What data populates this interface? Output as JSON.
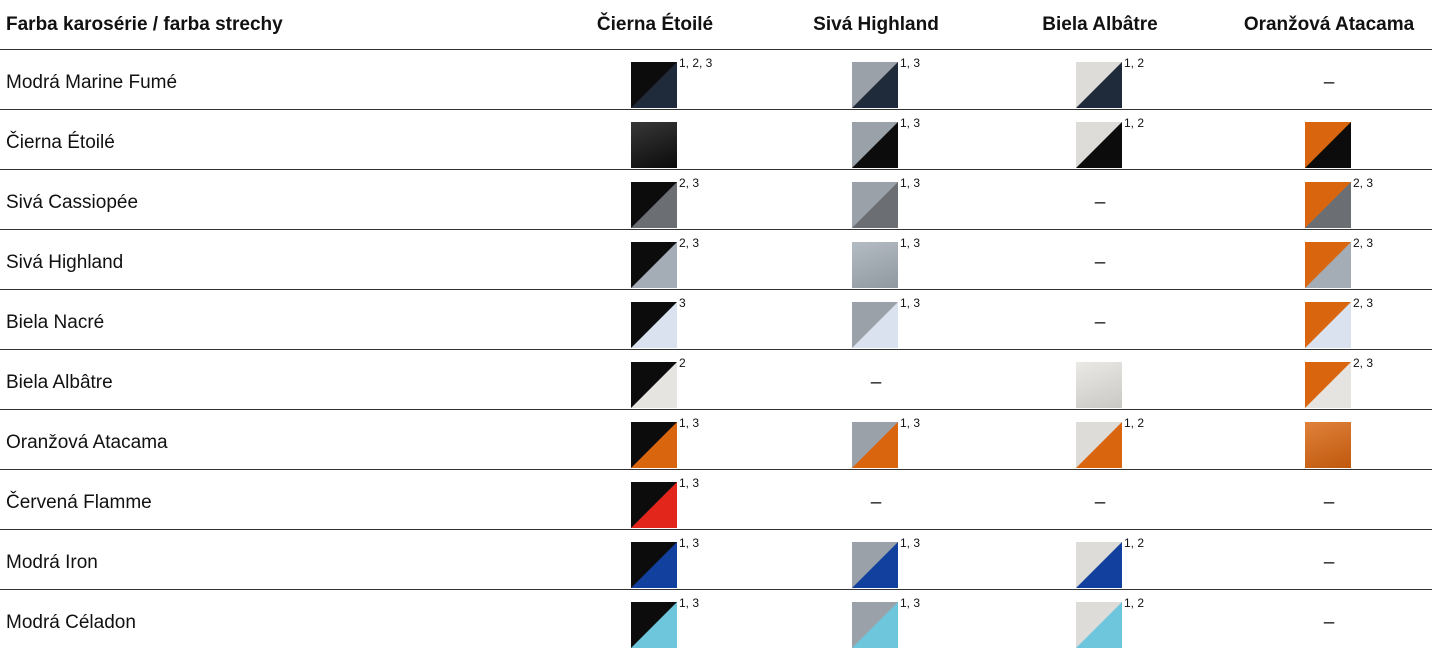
{
  "table": {
    "header": [
      "Farba karosérie / farba strechy",
      "Čierna Étoilé",
      "Sivá Highland",
      "Biela Albâtre",
      "Oranžová Atacama"
    ],
    "rows": [
      {
        "name": "Modrá Marine Fumé",
        "cells": [
          {
            "type": "split",
            "roof": "cierna",
            "body": "marine",
            "note": "1, 2, 3"
          },
          {
            "type": "split",
            "roof": "siva",
            "body": "marine",
            "note": "1, 3"
          },
          {
            "type": "split",
            "roof": "biela",
            "body": "marine",
            "note": "1, 2"
          },
          {
            "type": "none",
            "text": "–"
          }
        ]
      },
      {
        "name": "Čierna Étoilé",
        "cells": [
          {
            "type": "solid",
            "body": "cierna",
            "note": ""
          },
          {
            "type": "split",
            "roof": "siva",
            "body": "cierna",
            "note": "1, 3"
          },
          {
            "type": "split",
            "roof": "biela",
            "body": "cierna",
            "note": "1, 2"
          },
          {
            "type": "split",
            "roof": "oranzova",
            "body": "cierna",
            "note": ""
          }
        ]
      },
      {
        "name": "Sivá Cassiopée",
        "cells": [
          {
            "type": "split",
            "roof": "cierna",
            "body": "cassiopee",
            "note": "2, 3"
          },
          {
            "type": "split",
            "roof": "siva",
            "body": "cassiopee",
            "note": "1, 3"
          },
          {
            "type": "none",
            "text": "–"
          },
          {
            "type": "split",
            "roof": "oranzova",
            "body": "cassiopee",
            "note": "2, 3"
          }
        ]
      },
      {
        "name": "Sivá Highland",
        "cells": [
          {
            "type": "split",
            "roof": "cierna",
            "body": "highland",
            "note": "2, 3"
          },
          {
            "type": "solid",
            "body": "highland",
            "note": "1, 3"
          },
          {
            "type": "none",
            "text": "–"
          },
          {
            "type": "split",
            "roof": "oranzova",
            "body": "highland",
            "note": "2, 3"
          }
        ]
      },
      {
        "name": "Biela Nacré",
        "cells": [
          {
            "type": "split",
            "roof": "cierna",
            "body": "nacre",
            "note": "3"
          },
          {
            "type": "split",
            "roof": "siva",
            "body": "nacre",
            "note": "1, 3"
          },
          {
            "type": "none",
            "text": "–"
          },
          {
            "type": "split",
            "roof": "oranzova",
            "body": "nacre",
            "note": "2, 3"
          }
        ]
      },
      {
        "name": "Biela Albâtre",
        "cells": [
          {
            "type": "split",
            "roof": "cierna",
            "body": "albatre",
            "note": "2"
          },
          {
            "type": "none",
            "text": "–"
          },
          {
            "type": "solid",
            "body": "albatre",
            "note": ""
          },
          {
            "type": "split",
            "roof": "oranzova",
            "body": "albatre",
            "note": "2, 3"
          }
        ]
      },
      {
        "name": "Oranžová Atacama",
        "cells": [
          {
            "type": "split",
            "roof": "cierna",
            "body": "atacama",
            "note": "1, 3"
          },
          {
            "type": "split",
            "roof": "siva",
            "body": "atacama",
            "note": "1, 3"
          },
          {
            "type": "split",
            "roof": "biela",
            "body": "atacama",
            "note": "1, 2"
          },
          {
            "type": "solid",
            "body": "atacama",
            "note": ""
          }
        ]
      },
      {
        "name": "Červená Flamme",
        "cells": [
          {
            "type": "split",
            "roof": "cierna",
            "body": "flamme",
            "note": "1, 3"
          },
          {
            "type": "none",
            "text": "–"
          },
          {
            "type": "none",
            "text": "–"
          },
          {
            "type": "none",
            "text": "–"
          }
        ]
      },
      {
        "name": "Modrá Iron",
        "cells": [
          {
            "type": "split",
            "roof": "cierna",
            "body": "iron",
            "note": "1, 3"
          },
          {
            "type": "split",
            "roof": "siva",
            "body": "iron",
            "note": "1, 3"
          },
          {
            "type": "split",
            "roof": "biela",
            "body": "iron",
            "note": "1, 2"
          },
          {
            "type": "none",
            "text": "–"
          }
        ]
      },
      {
        "name": "Modrá Céladon",
        "cells": [
          {
            "type": "split",
            "roof": "cierna",
            "body": "celadon",
            "note": "1, 3"
          },
          {
            "type": "split",
            "roof": "siva",
            "body": "celadon",
            "note": "1, 3"
          },
          {
            "type": "split",
            "roof": "biela",
            "body": "celadon",
            "note": "1, 2"
          },
          {
            "type": "none",
            "text": "–"
          }
        ]
      }
    ]
  },
  "colors": {
    "cierna": "#0c0c0d",
    "siva": "#9aa1a8",
    "biela": "#dedcd8",
    "oranzova": "#d9650f",
    "marine": "#1f2a3a",
    "cassiopee": "#6b6e73",
    "highland": "#a4adb6",
    "nacre": "#dbe2ef",
    "albatre": "#e6e4e0",
    "atacama": "#d9650f",
    "flamme": "#e2261b",
    "iron": "#11409e",
    "celadon": "#6ec6dd",
    "divider": "#333333",
    "text": "#111111"
  }
}
